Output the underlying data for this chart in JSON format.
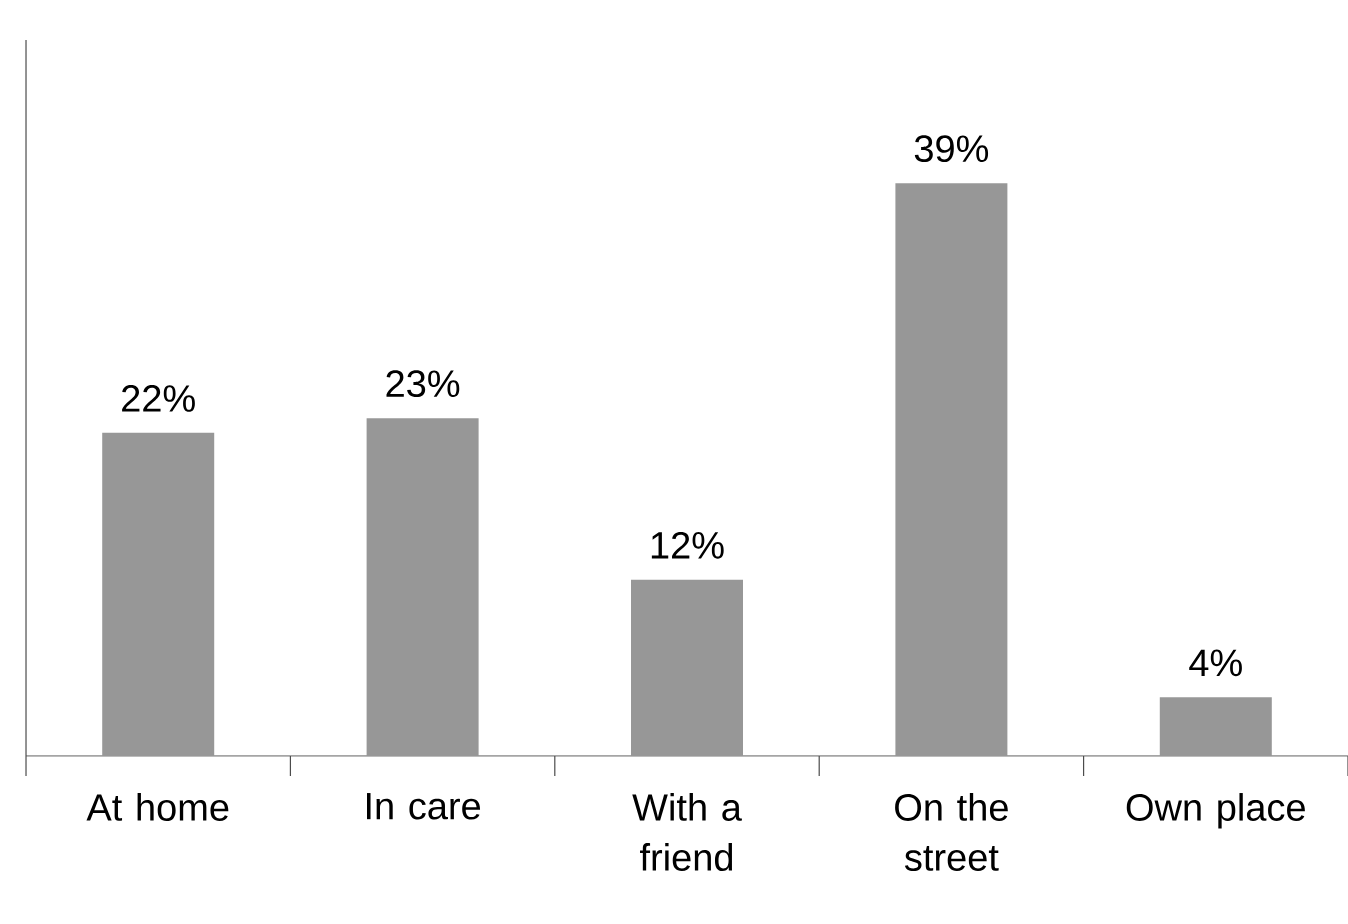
{
  "chart_data": {
    "type": "bar",
    "categories": [
      "At home",
      "In care",
      "With a friend",
      "On the street",
      "Own place"
    ],
    "values": [
      22,
      23,
      12,
      39,
      4
    ],
    "value_labels": [
      "22%",
      "23%",
      "12%",
      "39%",
      "4%"
    ],
    "color": "#979797"
  }
}
